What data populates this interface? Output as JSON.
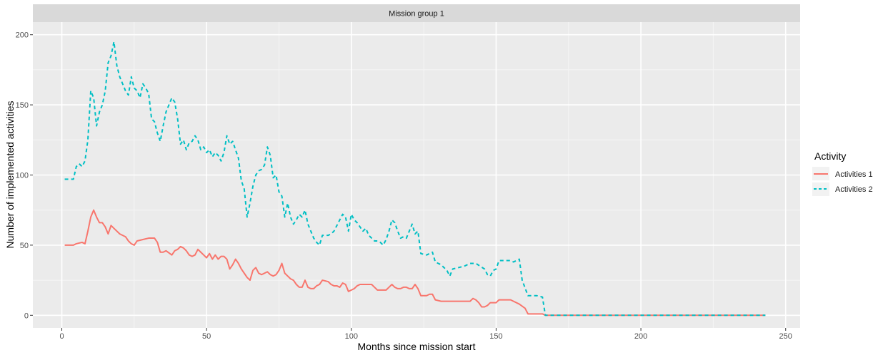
{
  "chart_data": {
    "type": "line",
    "facet_title": "Mission group 1",
    "xlabel": "Months since mission start",
    "ylabel": "Number of implemented activities",
    "xlim": [
      -10,
      255
    ],
    "ylim": [
      -9,
      209
    ],
    "x_ticks": [
      0,
      50,
      100,
      150,
      200,
      250
    ],
    "y_ticks": [
      0,
      50,
      100,
      150,
      200
    ],
    "grid": true,
    "legend": {
      "title": "Activity",
      "position": "right"
    },
    "series": [
      {
        "name": "Activities 1",
        "color": "#F8766D",
        "dash": "solid",
        "points": [
          [
            1,
            50
          ],
          [
            4,
            50
          ],
          [
            5,
            51
          ],
          [
            7,
            52
          ],
          [
            8,
            51
          ],
          [
            9,
            60
          ],
          [
            10,
            70
          ],
          [
            11,
            75
          ],
          [
            12,
            70
          ],
          [
            13,
            66
          ],
          [
            14,
            66
          ],
          [
            15,
            63
          ],
          [
            16,
            58
          ],
          [
            17,
            64
          ],
          [
            18,
            62
          ],
          [
            19,
            60
          ],
          [
            20,
            58
          ],
          [
            21,
            57
          ],
          [
            22,
            56
          ],
          [
            23,
            53
          ],
          [
            24,
            51
          ],
          [
            25,
            50
          ],
          [
            26,
            53
          ],
          [
            28,
            54
          ],
          [
            30,
            55
          ],
          [
            32,
            55
          ],
          [
            33,
            52
          ],
          [
            34,
            45
          ],
          [
            35,
            45
          ],
          [
            36,
            46
          ],
          [
            38,
            43
          ],
          [
            39,
            46
          ],
          [
            40,
            47
          ],
          [
            41,
            49
          ],
          [
            42,
            48
          ],
          [
            43,
            46
          ],
          [
            44,
            43
          ],
          [
            45,
            42
          ],
          [
            46,
            43
          ],
          [
            47,
            47
          ],
          [
            48,
            45
          ],
          [
            49,
            43
          ],
          [
            50,
            41
          ],
          [
            51,
            44
          ],
          [
            52,
            40
          ],
          [
            53,
            43
          ],
          [
            54,
            40
          ],
          [
            55,
            42
          ],
          [
            56,
            42
          ],
          [
            57,
            40
          ],
          [
            58,
            33
          ],
          [
            59,
            36
          ],
          [
            60,
            40
          ],
          [
            61,
            37
          ],
          [
            62,
            33
          ],
          [
            63,
            30
          ],
          [
            64,
            27
          ],
          [
            65,
            25
          ],
          [
            66,
            32
          ],
          [
            67,
            34
          ],
          [
            68,
            30
          ],
          [
            69,
            29
          ],
          [
            70,
            30
          ],
          [
            71,
            31
          ],
          [
            72,
            29
          ],
          [
            73,
            28
          ],
          [
            74,
            29
          ],
          [
            75,
            32
          ],
          [
            76,
            37
          ],
          [
            77,
            30
          ],
          [
            78,
            28
          ],
          [
            79,
            26
          ],
          [
            80,
            25
          ],
          [
            81,
            22
          ],
          [
            82,
            20
          ],
          [
            83,
            20
          ],
          [
            84,
            25
          ],
          [
            85,
            20
          ],
          [
            86,
            19
          ],
          [
            87,
            19
          ],
          [
            88,
            21
          ],
          [
            89,
            22
          ],
          [
            90,
            25
          ],
          [
            92,
            24
          ],
          [
            93,
            22
          ],
          [
            94,
            21
          ],
          [
            95,
            21
          ],
          [
            96,
            20
          ],
          [
            97,
            23
          ],
          [
            98,
            22
          ],
          [
            99,
            17
          ],
          [
            100,
            18
          ],
          [
            101,
            19
          ],
          [
            102,
            21
          ],
          [
            103,
            22
          ],
          [
            104,
            22
          ],
          [
            105,
            22
          ],
          [
            106,
            22
          ],
          [
            107,
            22
          ],
          [
            108,
            20
          ],
          [
            109,
            18
          ],
          [
            110,
            18
          ],
          [
            111,
            18
          ],
          [
            112,
            18
          ],
          [
            113,
            20
          ],
          [
            114,
            22
          ],
          [
            115,
            20
          ],
          [
            116,
            19
          ],
          [
            117,
            19
          ],
          [
            118,
            20
          ],
          [
            119,
            20
          ],
          [
            120,
            19
          ],
          [
            121,
            19
          ],
          [
            122,
            22
          ],
          [
            123,
            19
          ],
          [
            124,
            14
          ],
          [
            126,
            14
          ],
          [
            127,
            15
          ],
          [
            128,
            15
          ],
          [
            129,
            11
          ],
          [
            131,
            10
          ],
          [
            133,
            10
          ],
          [
            136,
            10
          ],
          [
            139,
            10
          ],
          [
            141,
            10
          ],
          [
            142,
            12
          ],
          [
            143,
            11
          ],
          [
            144,
            9
          ],
          [
            145,
            6
          ],
          [
            146,
            6
          ],
          [
            147,
            7
          ],
          [
            148,
            9
          ],
          [
            149,
            9
          ],
          [
            150,
            9
          ],
          [
            151,
            11
          ],
          [
            153,
            11
          ],
          [
            155,
            11
          ],
          [
            156,
            10
          ],
          [
            158,
            8
          ],
          [
            160,
            5
          ],
          [
            161,
            1
          ],
          [
            162,
            1
          ],
          [
            166,
            1
          ],
          [
            167,
            0
          ],
          [
            243,
            0
          ]
        ]
      },
      {
        "name": "Activities 2",
        "color": "#00BFC4",
        "dash": "dashed",
        "points": [
          [
            1,
            97
          ],
          [
            4,
            97
          ],
          [
            5,
            106
          ],
          [
            6,
            108
          ],
          [
            7,
            106
          ],
          [
            8,
            110
          ],
          [
            9,
            125
          ],
          [
            10,
            160
          ],
          [
            11,
            155
          ],
          [
            12,
            135
          ],
          [
            13,
            145
          ],
          [
            14,
            150
          ],
          [
            15,
            160
          ],
          [
            16,
            180
          ],
          [
            17,
            185
          ],
          [
            18,
            195
          ],
          [
            19,
            178
          ],
          [
            20,
            170
          ],
          [
            21,
            165
          ],
          [
            22,
            160
          ],
          [
            23,
            157
          ],
          [
            24,
            170
          ],
          [
            25,
            162
          ],
          [
            26,
            160
          ],
          [
            27,
            155
          ],
          [
            28,
            165
          ],
          [
            29,
            162
          ],
          [
            30,
            158
          ],
          [
            31,
            140
          ],
          [
            32,
            138
          ],
          [
            33,
            130
          ],
          [
            34,
            124
          ],
          [
            35,
            135
          ],
          [
            36,
            145
          ],
          [
            37,
            150
          ],
          [
            38,
            155
          ],
          [
            39,
            152
          ],
          [
            40,
            140
          ],
          [
            41,
            122
          ],
          [
            42,
            125
          ],
          [
            43,
            118
          ],
          [
            44,
            123
          ],
          [
            45,
            124
          ],
          [
            46,
            128
          ],
          [
            47,
            125
          ],
          [
            48,
            118
          ],
          [
            49,
            120
          ],
          [
            50,
            116
          ],
          [
            51,
            118
          ],
          [
            52,
            113
          ],
          [
            53,
            116
          ],
          [
            54,
            114
          ],
          [
            55,
            110
          ],
          [
            56,
            116
          ],
          [
            57,
            128
          ],
          [
            58,
            122
          ],
          [
            59,
            124
          ],
          [
            60,
            118
          ],
          [
            61,
            112
          ],
          [
            62,
            96
          ],
          [
            63,
            90
          ],
          [
            64,
            70
          ],
          [
            65,
            80
          ],
          [
            66,
            92
          ],
          [
            67,
            100
          ],
          [
            68,
            103
          ],
          [
            69,
            104
          ],
          [
            70,
            107
          ],
          [
            71,
            120
          ],
          [
            72,
            114
          ],
          [
            73,
            98
          ],
          [
            74,
            100
          ],
          [
            75,
            88
          ],
          [
            76,
            85
          ],
          [
            77,
            70
          ],
          [
            78,
            80
          ],
          [
            79,
            70
          ],
          [
            80,
            65
          ],
          [
            81,
            68
          ],
          [
            82,
            72
          ],
          [
            83,
            70
          ],
          [
            84,
            75
          ],
          [
            85,
            65
          ],
          [
            86,
            60
          ],
          [
            87,
            55
          ],
          [
            88,
            52
          ],
          [
            89,
            50
          ],
          [
            90,
            57
          ],
          [
            92,
            57
          ],
          [
            93,
            58
          ],
          [
            94,
            60
          ],
          [
            95,
            64
          ],
          [
            96,
            68
          ],
          [
            97,
            72
          ],
          [
            98,
            70
          ],
          [
            99,
            60
          ],
          [
            100,
            72
          ],
          [
            101,
            68
          ],
          [
            102,
            66
          ],
          [
            103,
            63
          ],
          [
            104,
            60
          ],
          [
            105,
            62
          ],
          [
            106,
            57
          ],
          [
            107,
            55
          ],
          [
            108,
            53
          ],
          [
            109,
            53
          ],
          [
            110,
            52
          ],
          [
            111,
            50
          ],
          [
            112,
            54
          ],
          [
            113,
            60
          ],
          [
            114,
            68
          ],
          [
            115,
            66
          ],
          [
            116,
            60
          ],
          [
            117,
            55
          ],
          [
            118,
            56
          ],
          [
            119,
            55
          ],
          [
            120,
            60
          ],
          [
            121,
            65
          ],
          [
            122,
            58
          ],
          [
            123,
            60
          ],
          [
            124,
            44
          ],
          [
            126,
            43
          ],
          [
            128,
            45
          ],
          [
            129,
            38
          ],
          [
            131,
            36
          ],
          [
            133,
            32
          ],
          [
            134,
            28
          ],
          [
            135,
            33
          ],
          [
            137,
            34
          ],
          [
            139,
            35
          ],
          [
            141,
            37
          ],
          [
            143,
            37
          ],
          [
            146,
            33
          ],
          [
            147,
            29
          ],
          [
            148,
            28
          ],
          [
            149,
            32
          ],
          [
            150,
            33
          ],
          [
            151,
            39
          ],
          [
            153,
            39
          ],
          [
            155,
            39
          ],
          [
            156,
            38
          ],
          [
            158,
            40
          ],
          [
            159,
            25
          ],
          [
            161,
            14
          ],
          [
            164,
            14
          ],
          [
            166,
            13
          ],
          [
            167,
            0
          ],
          [
            243,
            0
          ]
        ]
      }
    ]
  }
}
